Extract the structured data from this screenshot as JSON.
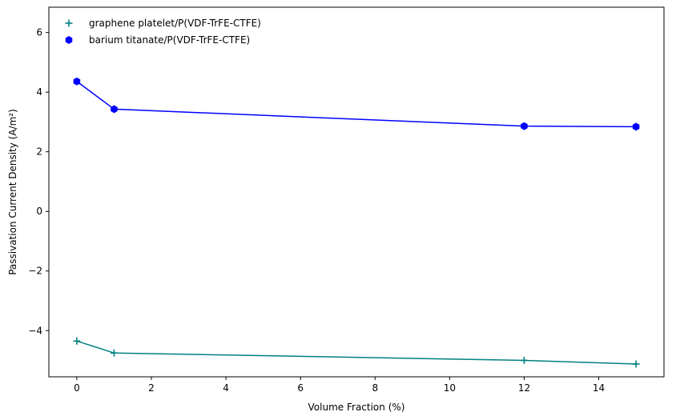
{
  "chart_data": {
    "type": "line",
    "title": "",
    "xlabel": "Volume Fraction (%)",
    "ylabel": "Passivation Current Density (A/m²)",
    "xlim": [
      -0.75,
      15.75
    ],
    "ylim": [
      -5.55,
      6.85
    ],
    "xticks": [
      0,
      2,
      4,
      6,
      8,
      10,
      12,
      14
    ],
    "yticks": [
      -4,
      -2,
      0,
      2,
      4,
      6
    ],
    "grid": false,
    "legend_position": "top-left",
    "series": [
      {
        "name": "graphene platelet/P(VDF-TrFE-CTFE)",
        "color": "#008080",
        "marker": "plus",
        "x": [
          0,
          1,
          12,
          15
        ],
        "y": [
          -4.35,
          -4.75,
          -5.0,
          -5.12
        ]
      },
      {
        "name": "barium titanate/P(VDF-TrFE-CTFE)",
        "color": "#0000ff",
        "marker": "hexagon",
        "x": [
          0,
          1,
          12,
          15
        ],
        "y": [
          4.36,
          3.43,
          2.86,
          2.84
        ]
      }
    ]
  }
}
